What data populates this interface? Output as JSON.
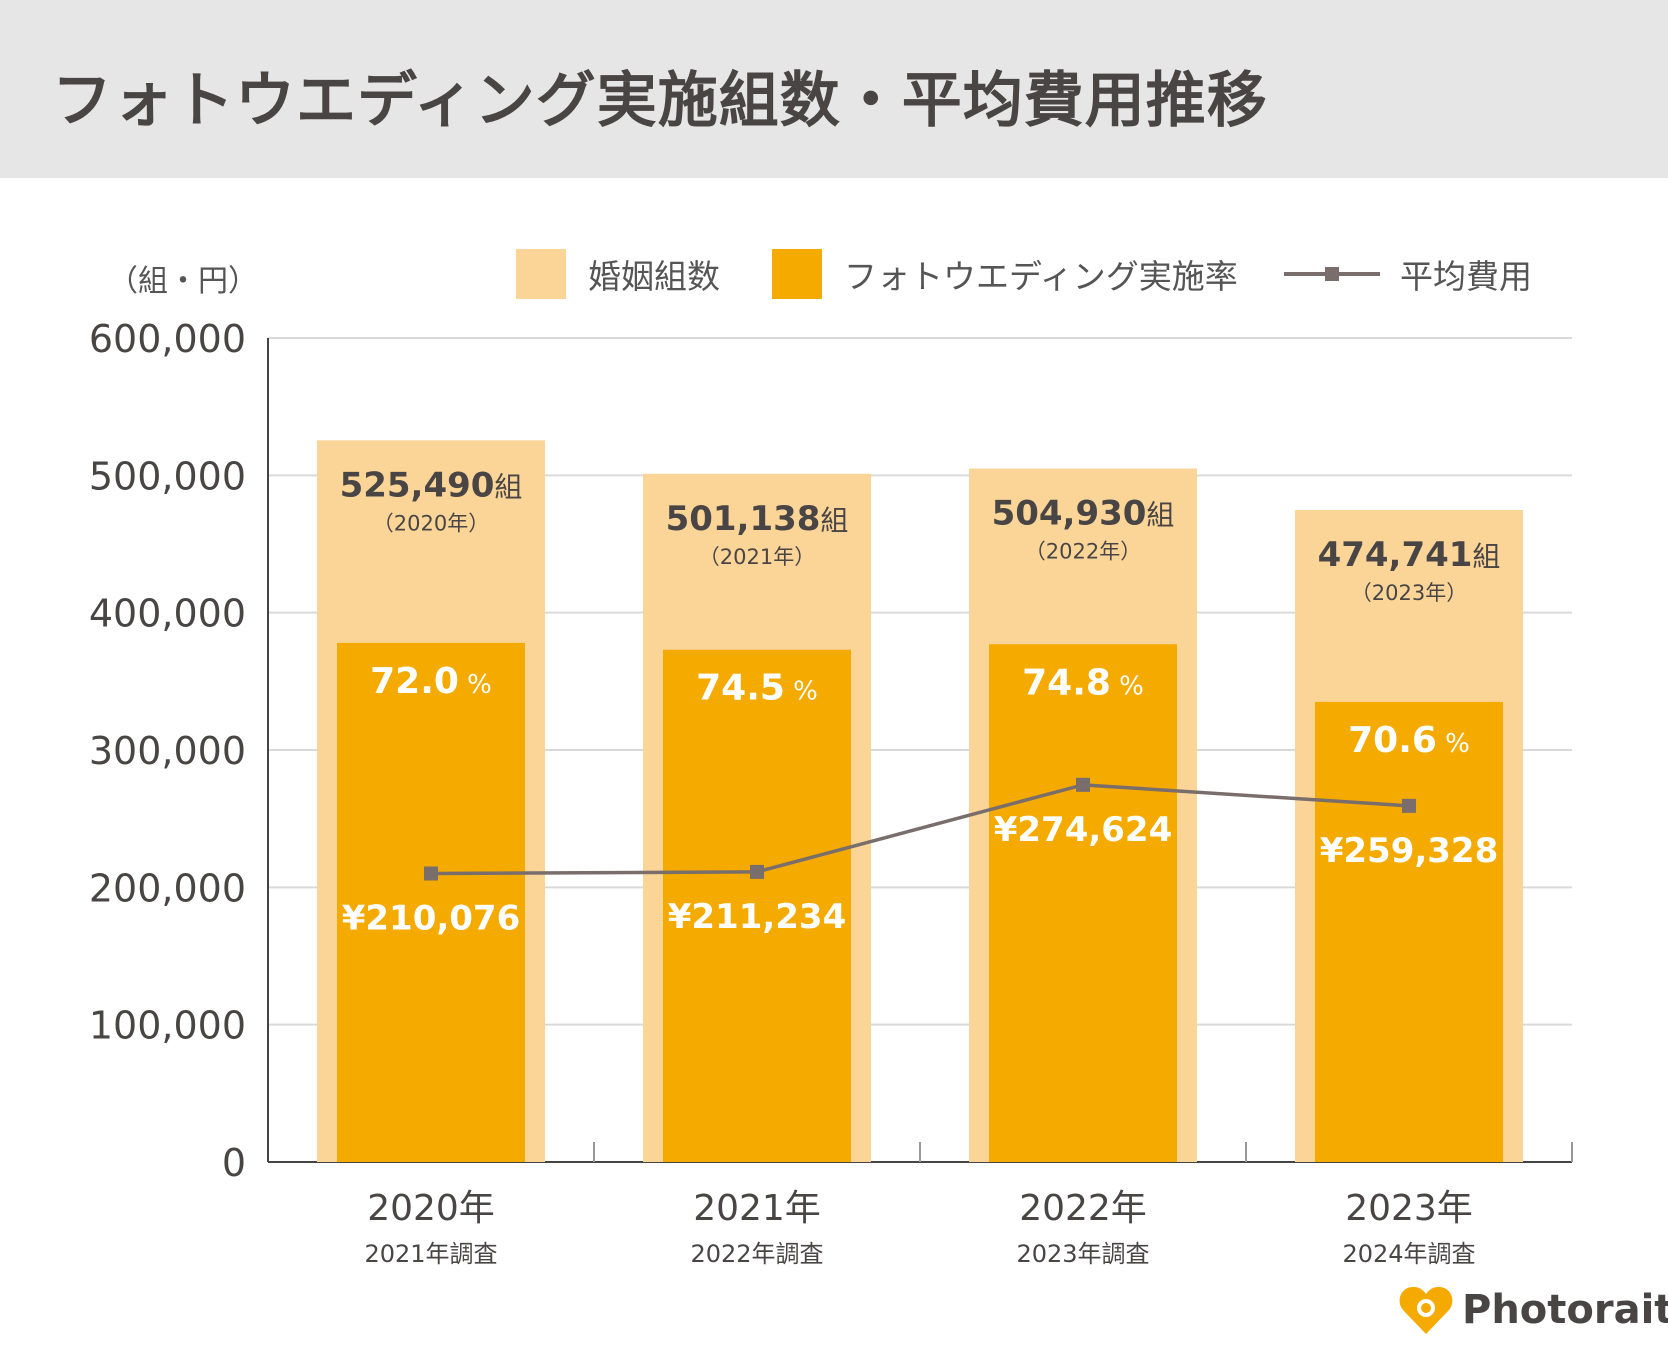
{
  "header": {
    "title": "フォトウエディング実施組数・平均費用推移"
  },
  "unit_label": "（組・円）",
  "legend": [
    {
      "label": "婚姻組数",
      "color": "#fad597"
    },
    {
      "label": "フォトウエディング実施率",
      "color": "#f5aa00"
    },
    {
      "label": "平均費用",
      "color": "#7a6e6c"
    }
  ],
  "brand": {
    "name": "Photorait",
    "color": "#f5aa00"
  },
  "chart_data": {
    "type": "bar",
    "title": "フォトウエディング実施組数・平均費用推移",
    "ylabel": "（組・円）",
    "ylim": [
      0,
      600000
    ],
    "yticks": [
      0,
      100000,
      200000,
      300000,
      400000,
      500000,
      600000
    ],
    "ytick_labels": [
      "0",
      "100,000",
      "200,000",
      "300,000",
      "400,000",
      "500,000",
      "600,000"
    ],
    "grid": true,
    "legend_position": "top",
    "categories": [
      "2020年",
      "2021年",
      "2022年",
      "2023年"
    ],
    "subcategories": [
      "2021年調査",
      "2022年調査",
      "2023年調査",
      "2024年調査"
    ],
    "series": [
      {
        "name": "婚姻組数",
        "type": "bar",
        "values": [
          525490,
          501138,
          504930,
          474741
        ],
        "labels": [
          "525,490",
          "501,138",
          "504,930",
          "474,741"
        ],
        "unit": "組",
        "sublabels": [
          "（2020年）",
          "（2021年）",
          "（2022年）",
          "（2023年）"
        ]
      },
      {
        "name": "フォトウエディング実施率",
        "type": "bar",
        "values": [
          378000,
          373000,
          377000,
          335000
        ],
        "labels": [
          "72.0",
          "74.5",
          "74.8",
          "70.6"
        ],
        "unit": "%"
      },
      {
        "name": "平均費用",
        "type": "line",
        "values": [
          210076,
          211234,
          274624,
          259328
        ],
        "labels": [
          "¥210,076",
          "¥211,234",
          "¥274,624",
          "¥259,328"
        ]
      }
    ]
  }
}
